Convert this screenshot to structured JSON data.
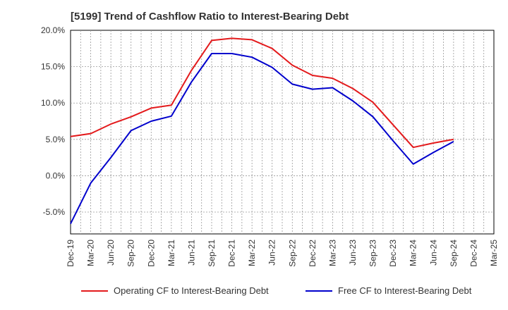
{
  "chart_data": {
    "type": "line",
    "title": "[5199]  Trend of Cashflow Ratio to Interest-Bearing Debt",
    "xlabel": "",
    "ylabel": "",
    "ylim": [
      -8,
      20
    ],
    "y_ticks": [
      "20.0%",
      "15.0%",
      "10.0%",
      "5.0%",
      "0.0%",
      "-5.0%"
    ],
    "y_tick_values": [
      20,
      15,
      10,
      5,
      0,
      -5
    ],
    "categories": [
      "Dec-19",
      "Mar-20",
      "Jun-20",
      "Sep-20",
      "Dec-20",
      "Mar-21",
      "Jun-21",
      "Sep-21",
      "Dec-21",
      "Mar-22",
      "Jun-22",
      "Sep-22",
      "Dec-22",
      "Mar-23",
      "Jun-23",
      "Sep-23",
      "Dec-23",
      "Mar-24",
      "Jun-24",
      "Sep-24",
      "Dec-24",
      "Mar-25"
    ],
    "grid": true,
    "legend_position": "bottom",
    "series": [
      {
        "name": "Operating CF to Interest-Bearing Debt",
        "color": "#e31a1c",
        "values": [
          5.4,
          5.8,
          7.1,
          8.1,
          9.3,
          9.7,
          14.5,
          18.6,
          18.9,
          18.7,
          17.5,
          15.2,
          13.8,
          13.4,
          12.0,
          10.1,
          7.0,
          3.9,
          4.5,
          5.0,
          null,
          null
        ]
      },
      {
        "name": "Free CF to Interest-Bearing Debt",
        "color": "#0000cc",
        "values": [
          -6.6,
          -1.0,
          2.5,
          6.2,
          7.5,
          8.2,
          12.9,
          16.8,
          16.8,
          16.3,
          14.9,
          12.6,
          11.9,
          12.1,
          10.3,
          8.1,
          4.8,
          1.6,
          3.2,
          4.7,
          null,
          null
        ]
      }
    ]
  }
}
